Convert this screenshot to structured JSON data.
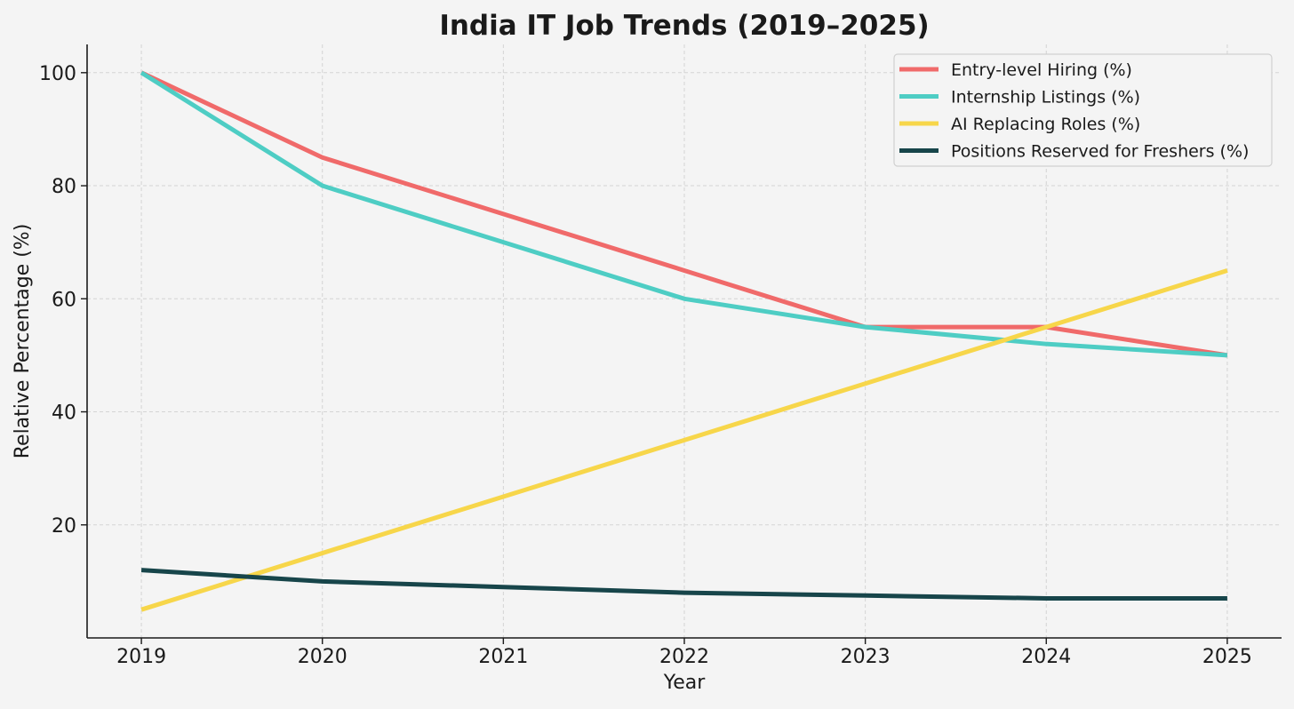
{
  "chart_data": {
    "type": "line",
    "title": "India IT Job Trends (2019–2025)",
    "xlabel": "Year",
    "ylabel": "Relative Percentage (%)",
    "x": [
      2019,
      2020,
      2021,
      2022,
      2023,
      2024,
      2025
    ],
    "x_tick_labels": [
      "2019",
      "2020",
      "2021",
      "2022",
      "2023",
      "2024",
      "2025"
    ],
    "y_ticks": [
      20,
      40,
      60,
      80,
      100
    ],
    "y_tick_labels": [
      "20",
      "40",
      "60",
      "80",
      "100"
    ],
    "xlim": [
      2018.7,
      2025.3
    ],
    "ylim": [
      0,
      105
    ],
    "grid": true,
    "legend_position": "top-right",
    "series": [
      {
        "name": "Entry-level Hiring (%)",
        "color": "#f06a6a",
        "values": [
          100,
          85,
          75,
          65,
          55,
          55,
          50
        ]
      },
      {
        "name": "Internship Listings (%)",
        "color": "#4ecdc4",
        "values": [
          100,
          80,
          70,
          60,
          55,
          52,
          50
        ]
      },
      {
        "name": "AI Replacing Roles (%)",
        "color": "#f7d64a",
        "values": [
          5,
          15,
          25,
          35,
          45,
          55,
          65
        ]
      },
      {
        "name": "Positions Reserved for Freshers (%)",
        "color": "#17454a",
        "values": [
          12,
          10,
          9,
          8,
          7.5,
          7,
          7
        ]
      }
    ]
  }
}
